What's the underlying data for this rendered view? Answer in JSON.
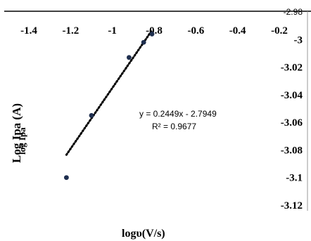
{
  "chart_data": {
    "type": "scatter",
    "x_axis": {
      "label": "logυ(V/s)",
      "position": "top",
      "range": [
        -1.4,
        -0.2
      ],
      "ticks": [
        "-1.4",
        "-1.2",
        "-1",
        "-0.8",
        "-0.6",
        "-0.4",
        "-0.2"
      ]
    },
    "y_axis": {
      "label": "Log Ipa (A)",
      "label_overlap": "log Ipa",
      "position": "right",
      "range": [
        -3.12,
        -2.98
      ],
      "ticks": [
        "-2.98",
        "-3",
        "-3.02",
        "-3.04",
        "-3.06",
        "-3.08",
        "-3.1",
        "-3.12"
      ]
    },
    "points": [
      {
        "x": -1.22,
        "y": -3.1
      },
      {
        "x": -1.1,
        "y": -3.055
      },
      {
        "x": -0.92,
        "y": -3.013
      },
      {
        "x": -0.85,
        "y": -3.002
      },
      {
        "x": -0.81,
        "y": -2.996
      }
    ],
    "trendline": {
      "slope": 0.2449,
      "intercept": -2.7949,
      "x_from": -1.22,
      "x_to": -0.81,
      "style": "dotted"
    },
    "equation": "y = 0.2449x - 2.7949",
    "r_squared": "R² = 0.9677",
    "grid": false,
    "legend": "none",
    "colors": {
      "point": "#1f2f4f",
      "trend": "#000000",
      "axis": "#000000",
      "right_axis": "#9a9a9a"
    }
  }
}
